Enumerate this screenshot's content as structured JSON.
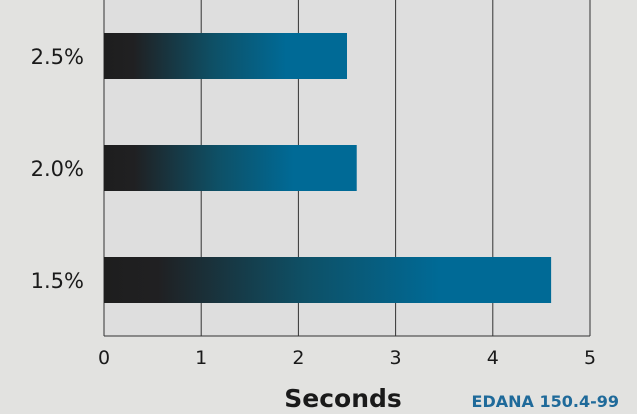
{
  "chart_data": {
    "type": "bar",
    "orientation": "horizontal",
    "categories": [
      "2.5%",
      "2.0%",
      "1.5%"
    ],
    "values": [
      2.5,
      2.6,
      4.6
    ],
    "xlabel": "Seconds",
    "ylabel": "",
    "xlim": [
      0,
      5
    ],
    "xticks": [
      "0",
      "1",
      "2",
      "3",
      "4",
      "5"
    ],
    "grid": true,
    "source_note": "EDANA 150.4-99",
    "colors": {
      "bar_start": "#1e1e1e",
      "bar_end": "#006a96",
      "plot_background": "#dedede",
      "grid": "#333333"
    }
  }
}
